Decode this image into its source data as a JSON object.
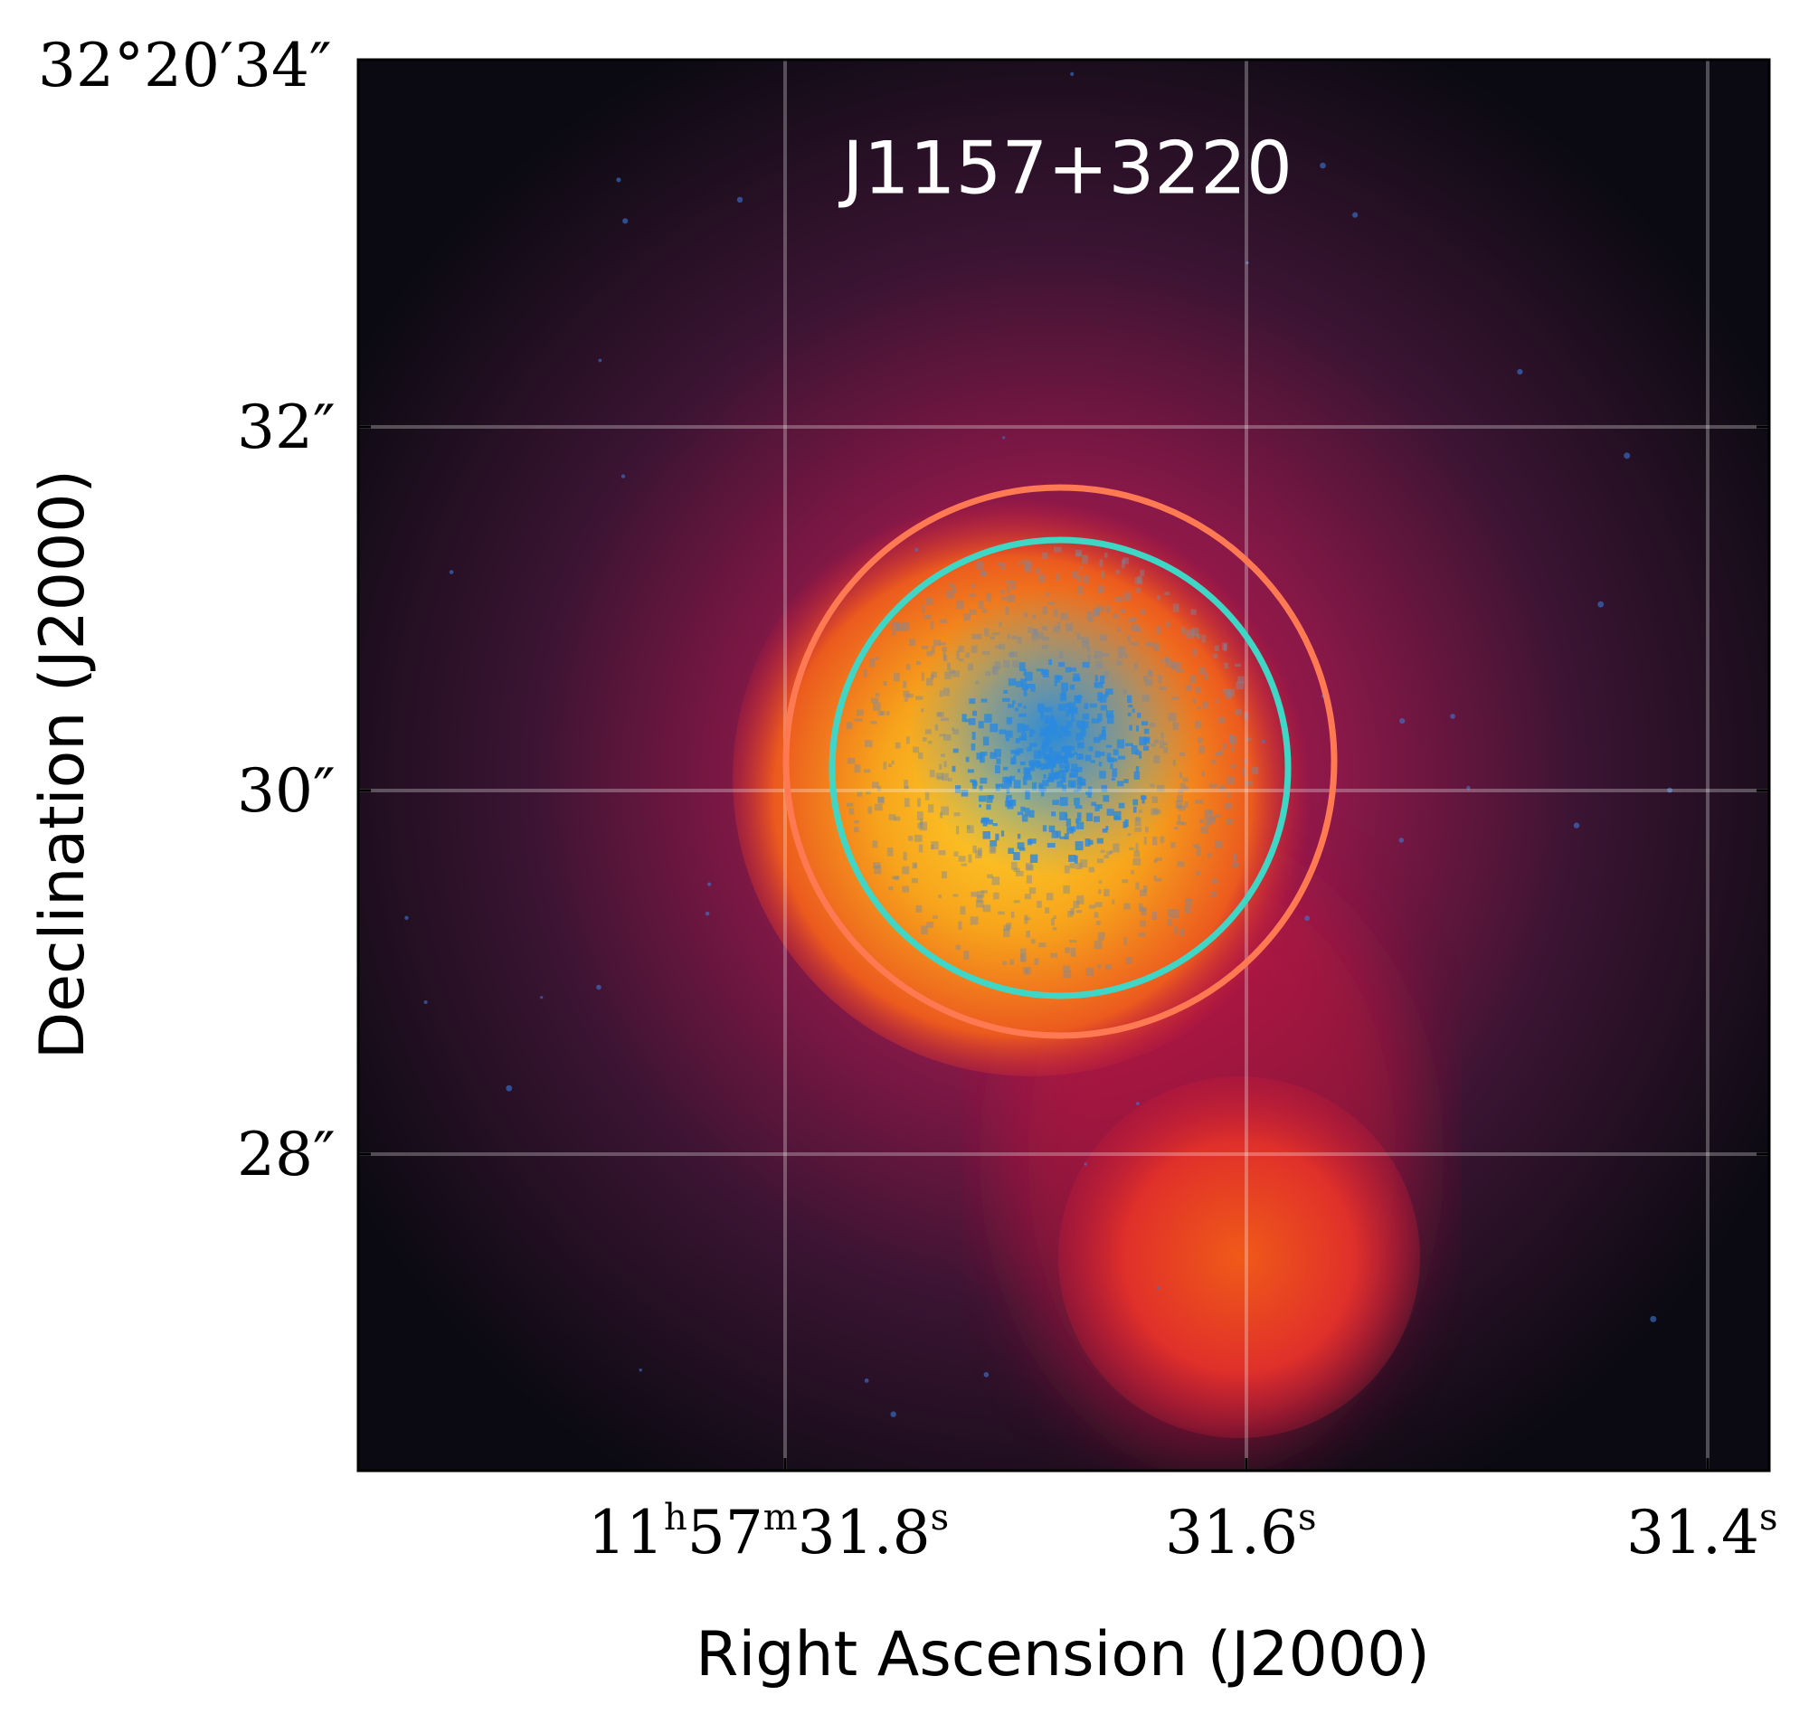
{
  "title": "J1157+3220",
  "xlabel": "Right Ascension (J2000)",
  "ylabel": "Declination (J2000)",
  "x_ticks": [
    {
      "main": "11",
      "parts": [
        [
          "11",
          "h"
        ],
        [
          "57",
          "m"
        ],
        [
          "31.8",
          "s"
        ]
      ]
    },
    {
      "main": "31.6",
      "parts": [
        [
          "31.6",
          "s"
        ]
      ]
    },
    {
      "main": "31.4",
      "parts": [
        [
          "31.4",
          "s"
        ]
      ]
    }
  ],
  "y_ticks": [
    "32°20′34″",
    "32″",
    "30″",
    "28″"
  ],
  "colors": {
    "inner_circle": "#3fd6c6",
    "outer_circle": "#ff7a52",
    "background_dark": "#0b0a12",
    "halo": "#b0124a",
    "core": "#ffcc22",
    "speckle": "#1c88e6"
  }
}
